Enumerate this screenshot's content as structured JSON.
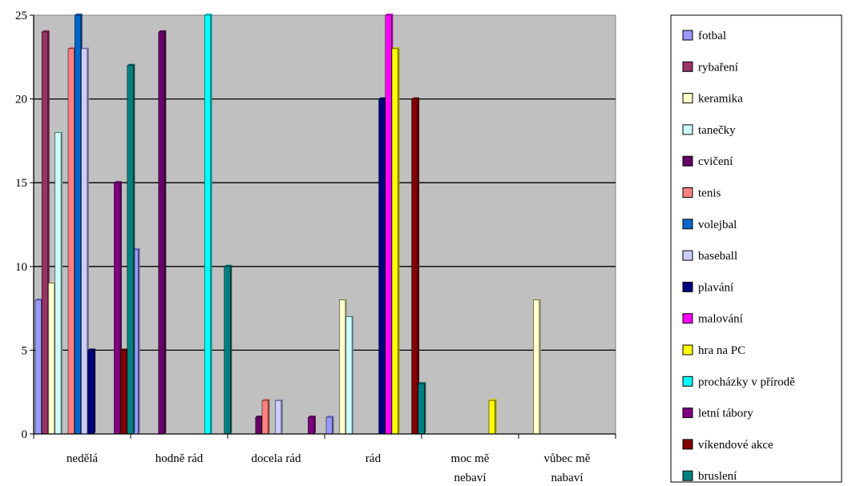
{
  "chart_data": {
    "type": "bar",
    "categories": [
      "nedělá",
      "hodně rád",
      "docela rád",
      "rád",
      "moc mě nebaví",
      "vůbec mě nabaví"
    ],
    "ylim": [
      0,
      25
    ],
    "yticks": [
      "0",
      "5",
      "10",
      "15",
      "20",
      "25"
    ],
    "grid": true,
    "legend_position": "right",
    "plot_background": "#c0c0c0",
    "series": [
      {
        "name": "fotbal",
        "color": "#9999ff",
        "values": [
          8,
          11,
          0,
          1,
          0,
          0
        ]
      },
      {
        "name": "rybaření",
        "color": "#993366",
        "values": [
          24,
          0,
          0,
          0,
          0,
          0
        ]
      },
      {
        "name": "keramika",
        "color": "#ffffcc",
        "values": [
          9,
          0,
          0,
          8,
          0,
          8
        ]
      },
      {
        "name": "tanečky",
        "color": "#ccffff",
        "values": [
          18,
          0,
          0,
          7,
          0,
          0
        ]
      },
      {
        "name": "cvičení",
        "color": "#660066",
        "values": [
          0,
          24,
          1,
          0,
          0,
          0
        ]
      },
      {
        "name": "tenis",
        "color": "#ff8080",
        "values": [
          23,
          0,
          2,
          0,
          0,
          0
        ]
      },
      {
        "name": "volejbal",
        "color": "#0066cc",
        "values": [
          25,
          0,
          0,
          0,
          0,
          0
        ]
      },
      {
        "name": "baseball",
        "color": "#ccccff",
        "values": [
          23,
          0,
          2,
          0,
          0,
          0
        ]
      },
      {
        "name": "plavání",
        "color": "#000080",
        "values": [
          5,
          0,
          0,
          20,
          0,
          0
        ]
      },
      {
        "name": "malování",
        "color": "#ff00ff",
        "values": [
          0,
          0,
          0,
          25,
          0,
          0
        ]
      },
      {
        "name": "hra na PC",
        "color": "#ffff00",
        "values": [
          0,
          0,
          0,
          23,
          2,
          0
        ]
      },
      {
        "name": "procházky v přírodě",
        "color": "#00ffff",
        "values": [
          0,
          25,
          0,
          0,
          0,
          0
        ]
      },
      {
        "name": "letní tábory",
        "color": "#800080",
        "values": [
          15,
          0,
          1,
          0,
          0,
          0
        ]
      },
      {
        "name": "víkendové akce",
        "color": "#800000",
        "values": [
          5,
          0,
          0,
          20,
          0,
          0
        ]
      },
      {
        "name": "bruslení",
        "color": "#008080",
        "values": [
          22,
          10,
          0,
          3,
          0,
          0
        ]
      }
    ]
  }
}
